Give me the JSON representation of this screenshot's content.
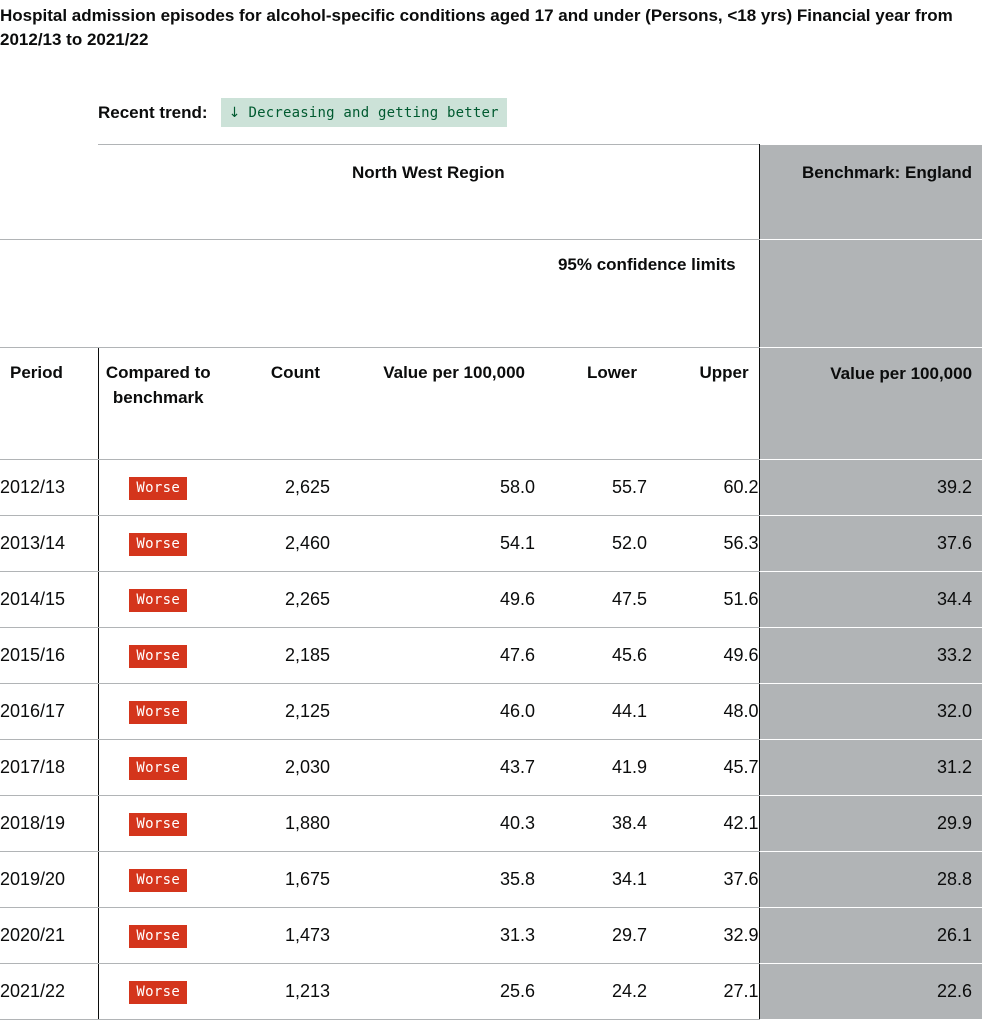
{
  "title": "Hospital admission episodes for alcohol-specific conditions aged 17 and under (Persons, <18 yrs) Financial year from 2012/13 to 2021/22",
  "trend": {
    "label": "Recent trend:",
    "icon": "arrow-down-icon",
    "arrow": "↓",
    "text": "Decreasing and getting better"
  },
  "table": {
    "region_header": "North West Region",
    "benchmark_header": "Benchmark: England",
    "ci_header": "95% confidence limits",
    "columns": {
      "period": "Period",
      "compared": "Compared to benchmark",
      "count": "Count",
      "value": "Value per 100,000",
      "lower": "Lower",
      "upper": "Upper",
      "bench_value": "Value per 100,000"
    },
    "rows": [
      {
        "period": "2012/13",
        "compared": "Worse",
        "count": "2,625",
        "value": "58.0",
        "lower": "55.7",
        "upper": "60.2",
        "bench": "39.2"
      },
      {
        "period": "2013/14",
        "compared": "Worse",
        "count": "2,460",
        "value": "54.1",
        "lower": "52.0",
        "upper": "56.3",
        "bench": "37.6"
      },
      {
        "period": "2014/15",
        "compared": "Worse",
        "count": "2,265",
        "value": "49.6",
        "lower": "47.5",
        "upper": "51.6",
        "bench": "34.4"
      },
      {
        "period": "2015/16",
        "compared": "Worse",
        "count": "2,185",
        "value": "47.6",
        "lower": "45.6",
        "upper": "49.6",
        "bench": "33.2"
      },
      {
        "period": "2016/17",
        "compared": "Worse",
        "count": "2,125",
        "value": "46.0",
        "lower": "44.1",
        "upper": "48.0",
        "bench": "32.0"
      },
      {
        "period": "2017/18",
        "compared": "Worse",
        "count": "2,030",
        "value": "43.7",
        "lower": "41.9",
        "upper": "45.7",
        "bench": "31.2"
      },
      {
        "period": "2018/19",
        "compared": "Worse",
        "count": "1,880",
        "value": "40.3",
        "lower": "38.4",
        "upper": "42.1",
        "bench": "29.9"
      },
      {
        "period": "2019/20",
        "compared": "Worse",
        "count": "1,675",
        "value": "35.8",
        "lower": "34.1",
        "upper": "37.6",
        "bench": "28.8"
      },
      {
        "period": "2020/21",
        "compared": "Worse",
        "count": "1,473",
        "value": "31.3",
        "lower": "29.7",
        "upper": "32.9",
        "bench": "26.1"
      },
      {
        "period": "2021/22",
        "compared": "Worse",
        "count": "1,213",
        "value": "25.6",
        "lower": "24.2",
        "upper": "27.1",
        "bench": "22.6"
      }
    ]
  },
  "colors": {
    "worse": "#d4351c",
    "trend_bg": "#cce2d8",
    "trend_text": "#005a30",
    "benchmark_bg": "#b1b4b6"
  }
}
